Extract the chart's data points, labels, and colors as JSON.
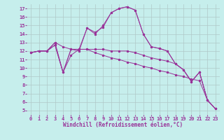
{
  "xlabel": "Windchill (Refroidissement éolien,°C)",
  "background_color": "#c6eeec",
  "grid_color": "#b0c8c8",
  "line_color": "#993399",
  "xlim": [
    -0.5,
    23.5
  ],
  "ylim": [
    4.5,
    17.5
  ],
  "xticks": [
    0,
    1,
    2,
    3,
    4,
    5,
    6,
    7,
    8,
    9,
    10,
    11,
    12,
    13,
    14,
    15,
    16,
    17,
    18,
    19,
    20,
    21,
    22,
    23
  ],
  "yticks": [
    5,
    6,
    7,
    8,
    9,
    10,
    11,
    12,
    13,
    14,
    15,
    16,
    17
  ],
  "series": [
    [
      11.8,
      12.0,
      12.0,
      13.0,
      12.5,
      12.2,
      12.0,
      14.7,
      14.0,
      15.0,
      16.5,
      17.0,
      17.2,
      16.8,
      14.0,
      12.5,
      12.3,
      12.0,
      10.5,
      9.8,
      8.4,
      9.5,
      6.2,
      5.2
    ],
    [
      11.8,
      12.0,
      12.0,
      13.0,
      9.5,
      11.5,
      12.2,
      14.7,
      14.2,
      14.8,
      16.5,
      17.0,
      17.2,
      16.8,
      14.0,
      12.5,
      12.3,
      12.0,
      10.5,
      9.8,
      8.4,
      9.5,
      6.2,
      5.2
    ],
    [
      11.8,
      12.0,
      12.0,
      12.7,
      9.5,
      12.2,
      12.2,
      12.2,
      12.2,
      12.2,
      12.0,
      12.0,
      12.0,
      11.8,
      11.5,
      11.2,
      11.0,
      10.8,
      10.5,
      9.8,
      8.4,
      9.5,
      6.2,
      5.2
    ],
    [
      11.8,
      12.0,
      12.0,
      12.7,
      9.5,
      12.2,
      12.2,
      12.2,
      11.8,
      11.5,
      11.2,
      11.0,
      10.7,
      10.5,
      10.2,
      10.0,
      9.7,
      9.5,
      9.2,
      9.0,
      8.7,
      8.5,
      6.2,
      5.2
    ]
  ],
  "tick_fontsize": 5,
  "xlabel_fontsize": 5.5
}
